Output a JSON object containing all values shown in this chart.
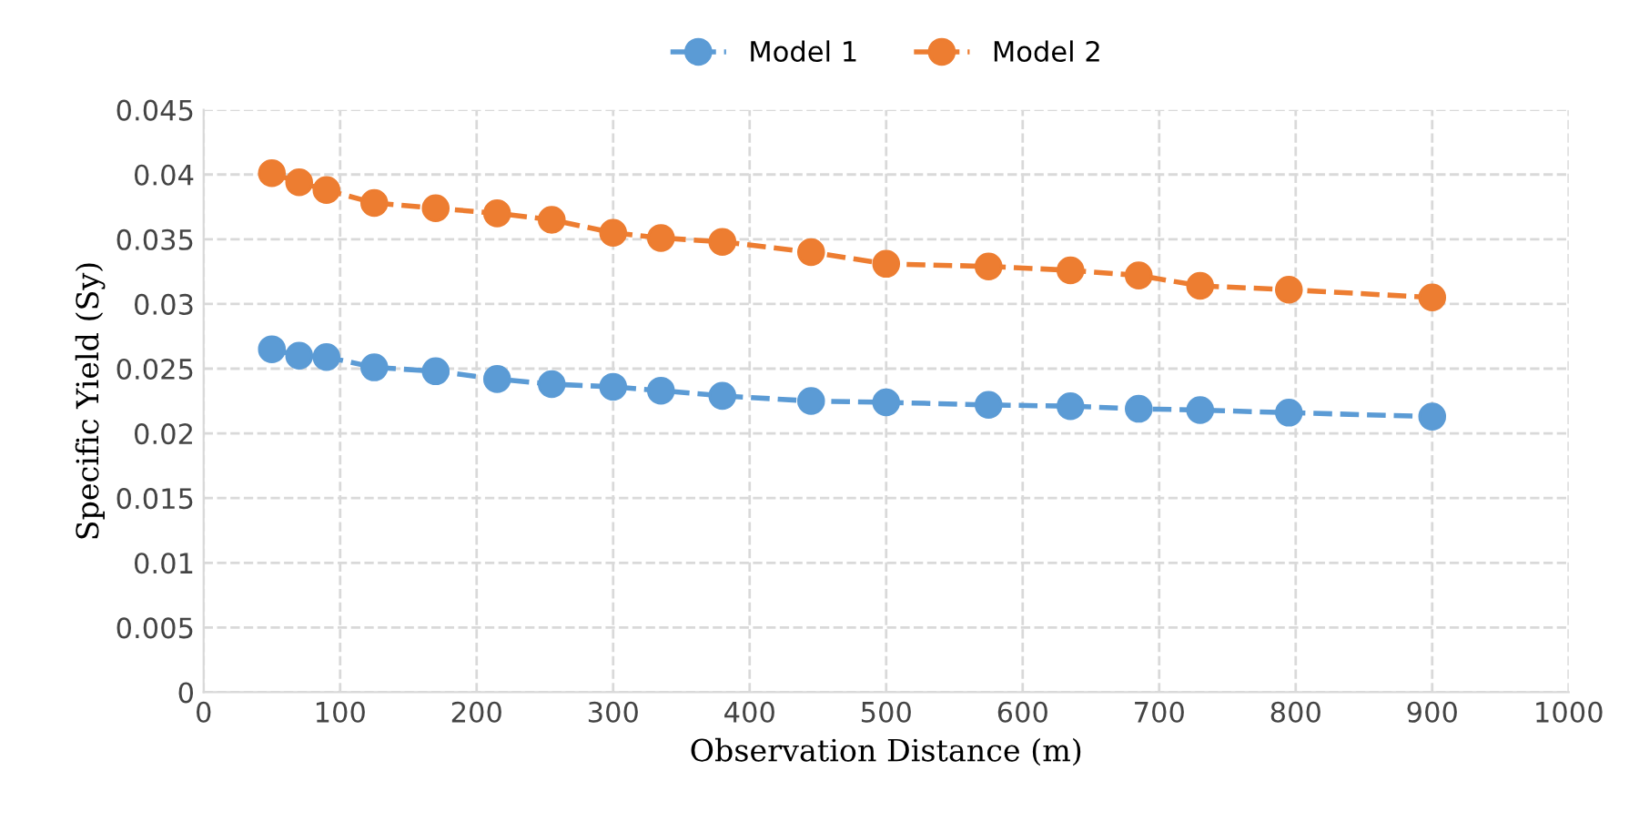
{
  "chart_data": {
    "type": "line",
    "xlabel": "Observation Distance (m)",
    "ylabel": "Specific Yield (Sy)",
    "x": [
      50,
      70,
      90,
      125,
      170,
      215,
      255,
      300,
      335,
      380,
      445,
      500,
      575,
      635,
      685,
      730,
      795,
      900
    ],
    "series": [
      {
        "name": "Model 1",
        "color": "#5b9bd5",
        "values": [
          0.0265,
          0.026,
          0.0259,
          0.0251,
          0.0248,
          0.0242,
          0.0238,
          0.0236,
          0.0233,
          0.0229,
          0.0225,
          0.0224,
          0.0222,
          0.0221,
          0.0219,
          0.0218,
          0.0216,
          0.0213
        ]
      },
      {
        "name": "Model 2",
        "color": "#ed7d31",
        "values": [
          0.0401,
          0.0394,
          0.0388,
          0.0378,
          0.0374,
          0.037,
          0.0365,
          0.0355,
          0.0351,
          0.0348,
          0.034,
          0.0331,
          0.0329,
          0.0326,
          0.0322,
          0.0314,
          0.0311,
          0.0305
        ]
      }
    ],
    "xlim": [
      0,
      1000
    ],
    "xticks": [
      0,
      100,
      200,
      300,
      400,
      500,
      600,
      700,
      800,
      900,
      1000
    ],
    "ylim": [
      0,
      0.045
    ],
    "yticks": [
      {
        "value": 0,
        "label": "0"
      },
      {
        "value": 0.005,
        "label": "0.005"
      },
      {
        "value": 0.01,
        "label": "0.01"
      },
      {
        "value": 0.015,
        "label": "0.015"
      },
      {
        "value": 0.02,
        "label": "0.02"
      },
      {
        "value": 0.025,
        "label": "0.025"
      },
      {
        "value": 0.03,
        "label": "0.03"
      },
      {
        "value": 0.035,
        "label": "0.035"
      },
      {
        "value": 0.04,
        "label": "0.04"
      },
      {
        "value": 0.045,
        "label": "0.045"
      }
    ],
    "grid": true,
    "legend": "top",
    "marker": "circle",
    "line_style": "dashed"
  }
}
